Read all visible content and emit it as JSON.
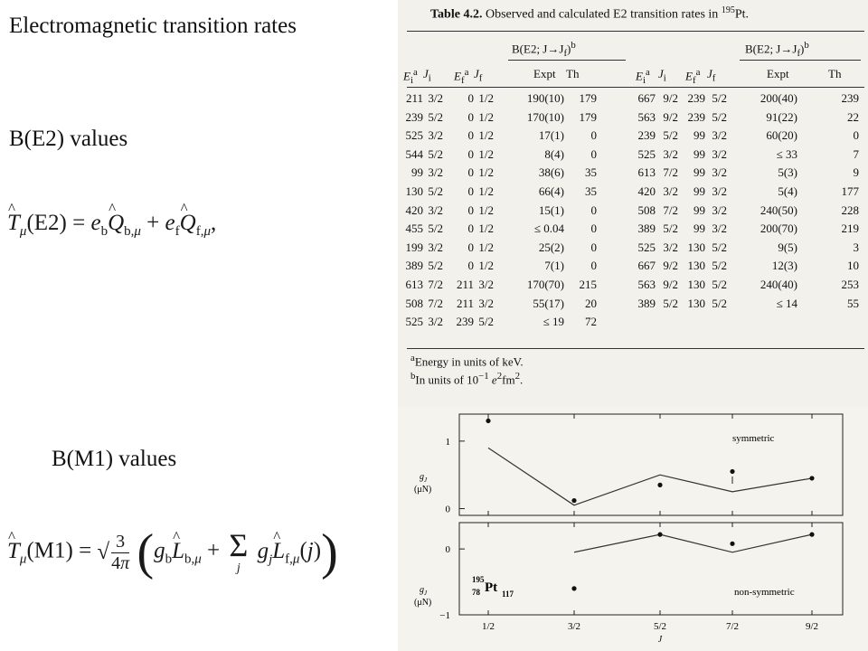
{
  "slide": {
    "title": "Electromagnetic transition rates",
    "e2_label": "B(E2) values",
    "m1_label": "B(M1) values"
  },
  "table": {
    "number": "Table 4.2.",
    "caption": "Observed and calculated E2 transition rates in",
    "nucleus_mass": "195",
    "nucleus_symbol": "Pt.",
    "group_header": "B(E2; J",
    "col_headers": [
      "Ei",
      "Ji",
      "Ef",
      "Jf",
      "Expt",
      "Th"
    ],
    "rows_left": [
      [
        "211",
        "3/2",
        "0",
        "1/2",
        "190(10)",
        "179"
      ],
      [
        "239",
        "5/2",
        "0",
        "1/2",
        "170(10)",
        "179"
      ],
      [
        "525",
        "3/2",
        "0",
        "1/2",
        "17(1)",
        "0"
      ],
      [
        "544",
        "5/2",
        "0",
        "1/2",
        "8(4)",
        "0"
      ],
      [
        "99",
        "3/2",
        "0",
        "1/2",
        "38(6)",
        "35"
      ],
      [
        "130",
        "5/2",
        "0",
        "1/2",
        "66(4)",
        "35"
      ],
      [
        "420",
        "3/2",
        "0",
        "1/2",
        "15(1)",
        "0"
      ],
      [
        "455",
        "5/2",
        "0",
        "1/2",
        "≤ 0.04",
        "0"
      ],
      [
        "199",
        "3/2",
        "0",
        "1/2",
        "25(2)",
        "0"
      ],
      [
        "389",
        "5/2",
        "0",
        "1/2",
        "7(1)",
        "0"
      ],
      [
        "613",
        "7/2",
        "211",
        "3/2",
        "170(70)",
        "215"
      ],
      [
        "508",
        "7/2",
        "211",
        "3/2",
        "55(17)",
        "20"
      ],
      [
        "525",
        "3/2",
        "239",
        "5/2",
        "≤ 19",
        "72"
      ]
    ],
    "rows_right": [
      [
        "667",
        "9/2",
        "239",
        "5/2",
        "200(40)",
        "239"
      ],
      [
        "563",
        "9/2",
        "239",
        "5/2",
        "91(22)",
        "22"
      ],
      [
        "239",
        "5/2",
        "99",
        "3/2",
        "60(20)",
        "0"
      ],
      [
        "525",
        "3/2",
        "99",
        "3/2",
        "≤ 33",
        "7"
      ],
      [
        "613",
        "7/2",
        "99",
        "3/2",
        "5(3)",
        "9"
      ],
      [
        "420",
        "3/2",
        "99",
        "3/2",
        "5(4)",
        "177"
      ],
      [
        "508",
        "7/2",
        "99",
        "3/2",
        "240(50)",
        "228"
      ],
      [
        "389",
        "5/2",
        "99",
        "3/2",
        "200(70)",
        "219"
      ],
      [
        "525",
        "3/2",
        "130",
        "5/2",
        "9(5)",
        "3"
      ],
      [
        "667",
        "9/2",
        "130",
        "5/2",
        "12(3)",
        "10"
      ],
      [
        "563",
        "9/2",
        "130",
        "5/2",
        "240(40)",
        "253"
      ],
      [
        "389",
        "5/2",
        "130",
        "5/2",
        "≤ 14",
        "55"
      ]
    ],
    "footnote_a": "Energy in units of keV.",
    "footnote_b_pre": "In units of 10",
    "footnote_b_post": "fm"
  },
  "chart_data": [
    {
      "type": "line",
      "label": "symmetric",
      "x": [
        "1/2",
        "3/2",
        "5/2",
        "7/2",
        "9/2"
      ],
      "ylabel": "g_J (μ_N)",
      "yticks": [
        "1",
        "0"
      ],
      "ylim": [
        -0.1,
        1.4
      ],
      "series": [
        {
          "style": "line",
          "values": [
            0.9,
            0.05,
            0.5,
            0.25,
            0.45
          ]
        },
        {
          "style": "points",
          "values": [
            1.3,
            0.12,
            0.35,
            0.55,
            0.45
          ]
        }
      ]
    },
    {
      "type": "line",
      "label": "non-symmetric",
      "nucleus": {
        "A": "195",
        "Z": "78",
        "symbol": "Pt",
        "N": "117"
      },
      "x": [
        "1/2",
        "3/2",
        "5/2",
        "7/2",
        "9/2"
      ],
      "xlabel": "J",
      "ylabel": "g_J (μ_N)",
      "yticks": [
        "0",
        "-1"
      ],
      "ylim": [
        -1,
        0.4
      ],
      "series": [
        {
          "style": "line",
          "values": [
            null,
            -0.05,
            0.22,
            -0.05,
            0.22
          ]
        },
        {
          "style": "points",
          "values": [
            null,
            -0.6,
            0.22,
            0.08,
            0.22
          ]
        }
      ]
    }
  ]
}
